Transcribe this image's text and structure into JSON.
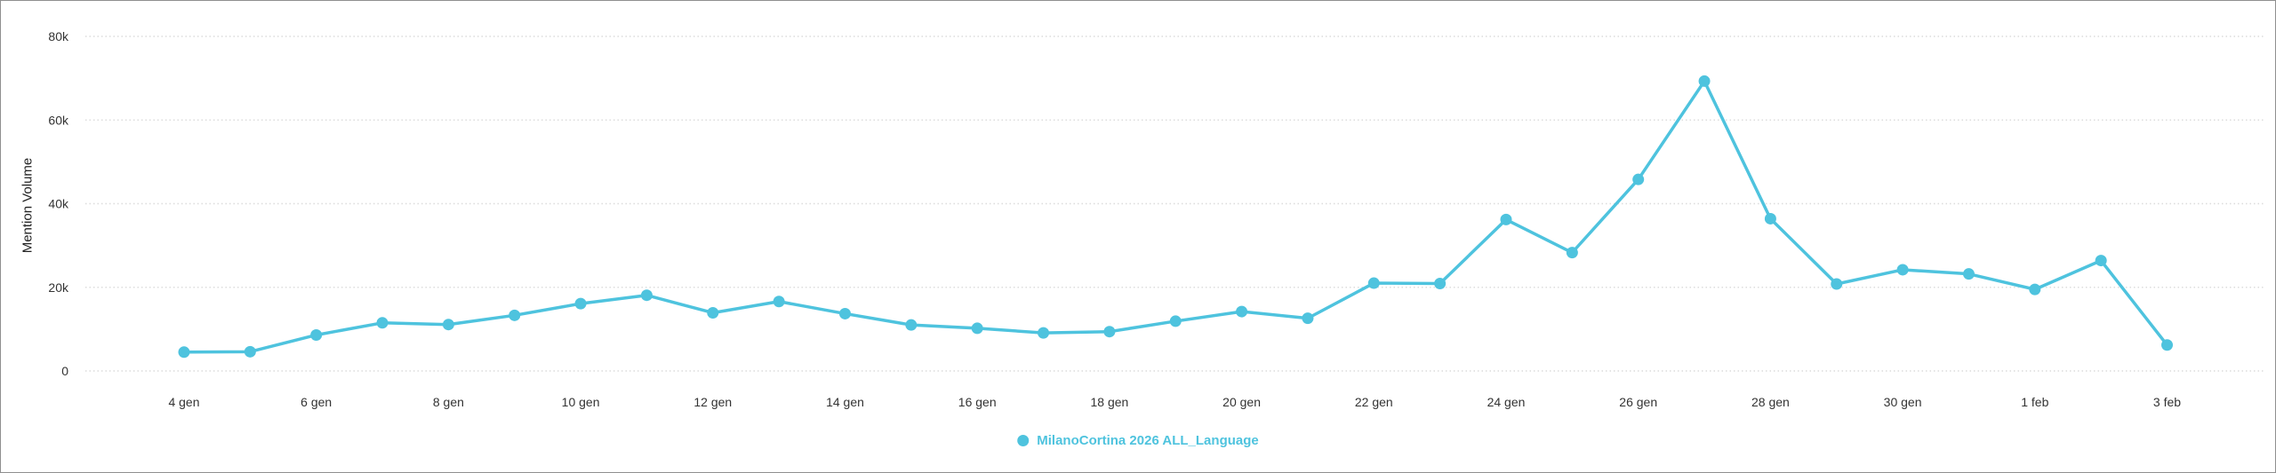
{
  "chart": {
    "y_axis_title": "Mention Volume",
    "legend": {
      "label": "MilanoCortina 2026 ALL_Language"
    },
    "colors": {
      "series": "#4ec3de",
      "grid": "#dcdcdc",
      "axis_text": "#333333",
      "background": "#ffffff"
    }
  },
  "chart_data": {
    "type": "line",
    "title": "",
    "xlabel": "",
    "ylabel": "Mention Volume",
    "categories": [
      "4 gen",
      "5 gen",
      "6 gen",
      "7 gen",
      "8 gen",
      "9 gen",
      "10 gen",
      "11 gen",
      "12 gen",
      "13 gen",
      "14 gen",
      "15 gen",
      "16 gen",
      "17 gen",
      "18 gen",
      "19 gen",
      "20 gen",
      "21 gen",
      "22 gen",
      "23 gen",
      "24 gen",
      "25 gen",
      "26 gen",
      "27 gen",
      "28 gen",
      "29 gen",
      "30 gen",
      "31 gen",
      "1 feb",
      "2 feb",
      "3 feb"
    ],
    "series": [
      {
        "name": "MilanoCortina 2026 ALL_Language",
        "color": "#4ec3de",
        "values": [
          4500,
          4600,
          8600,
          11500,
          11100,
          13300,
          16100,
          18100,
          13900,
          16600,
          13700,
          11000,
          10200,
          9100,
          9400,
          11900,
          14200,
          12600,
          21000,
          20900,
          36200,
          28300,
          45800,
          69300,
          36400,
          20800,
          24200,
          23200,
          19500,
          26400,
          6200
        ]
      }
    ],
    "x_tick_labels": [
      "4 gen",
      "6 gen",
      "8 gen",
      "10 gen",
      "12 gen",
      "14 gen",
      "16 gen",
      "18 gen",
      "20 gen",
      "22 gen",
      "24 gen",
      "26 gen",
      "28 gen",
      "30 gen",
      "1 feb",
      "3 feb"
    ],
    "y_ticks": [
      0,
      20000,
      40000,
      60000,
      80000
    ],
    "y_tick_labels": [
      "0",
      "20k",
      "40k",
      "60k",
      "80k"
    ],
    "ylim": [
      0,
      80000
    ],
    "grid": "horizontal-dotted",
    "legend_position": "bottom-center",
    "marker": "circle"
  }
}
